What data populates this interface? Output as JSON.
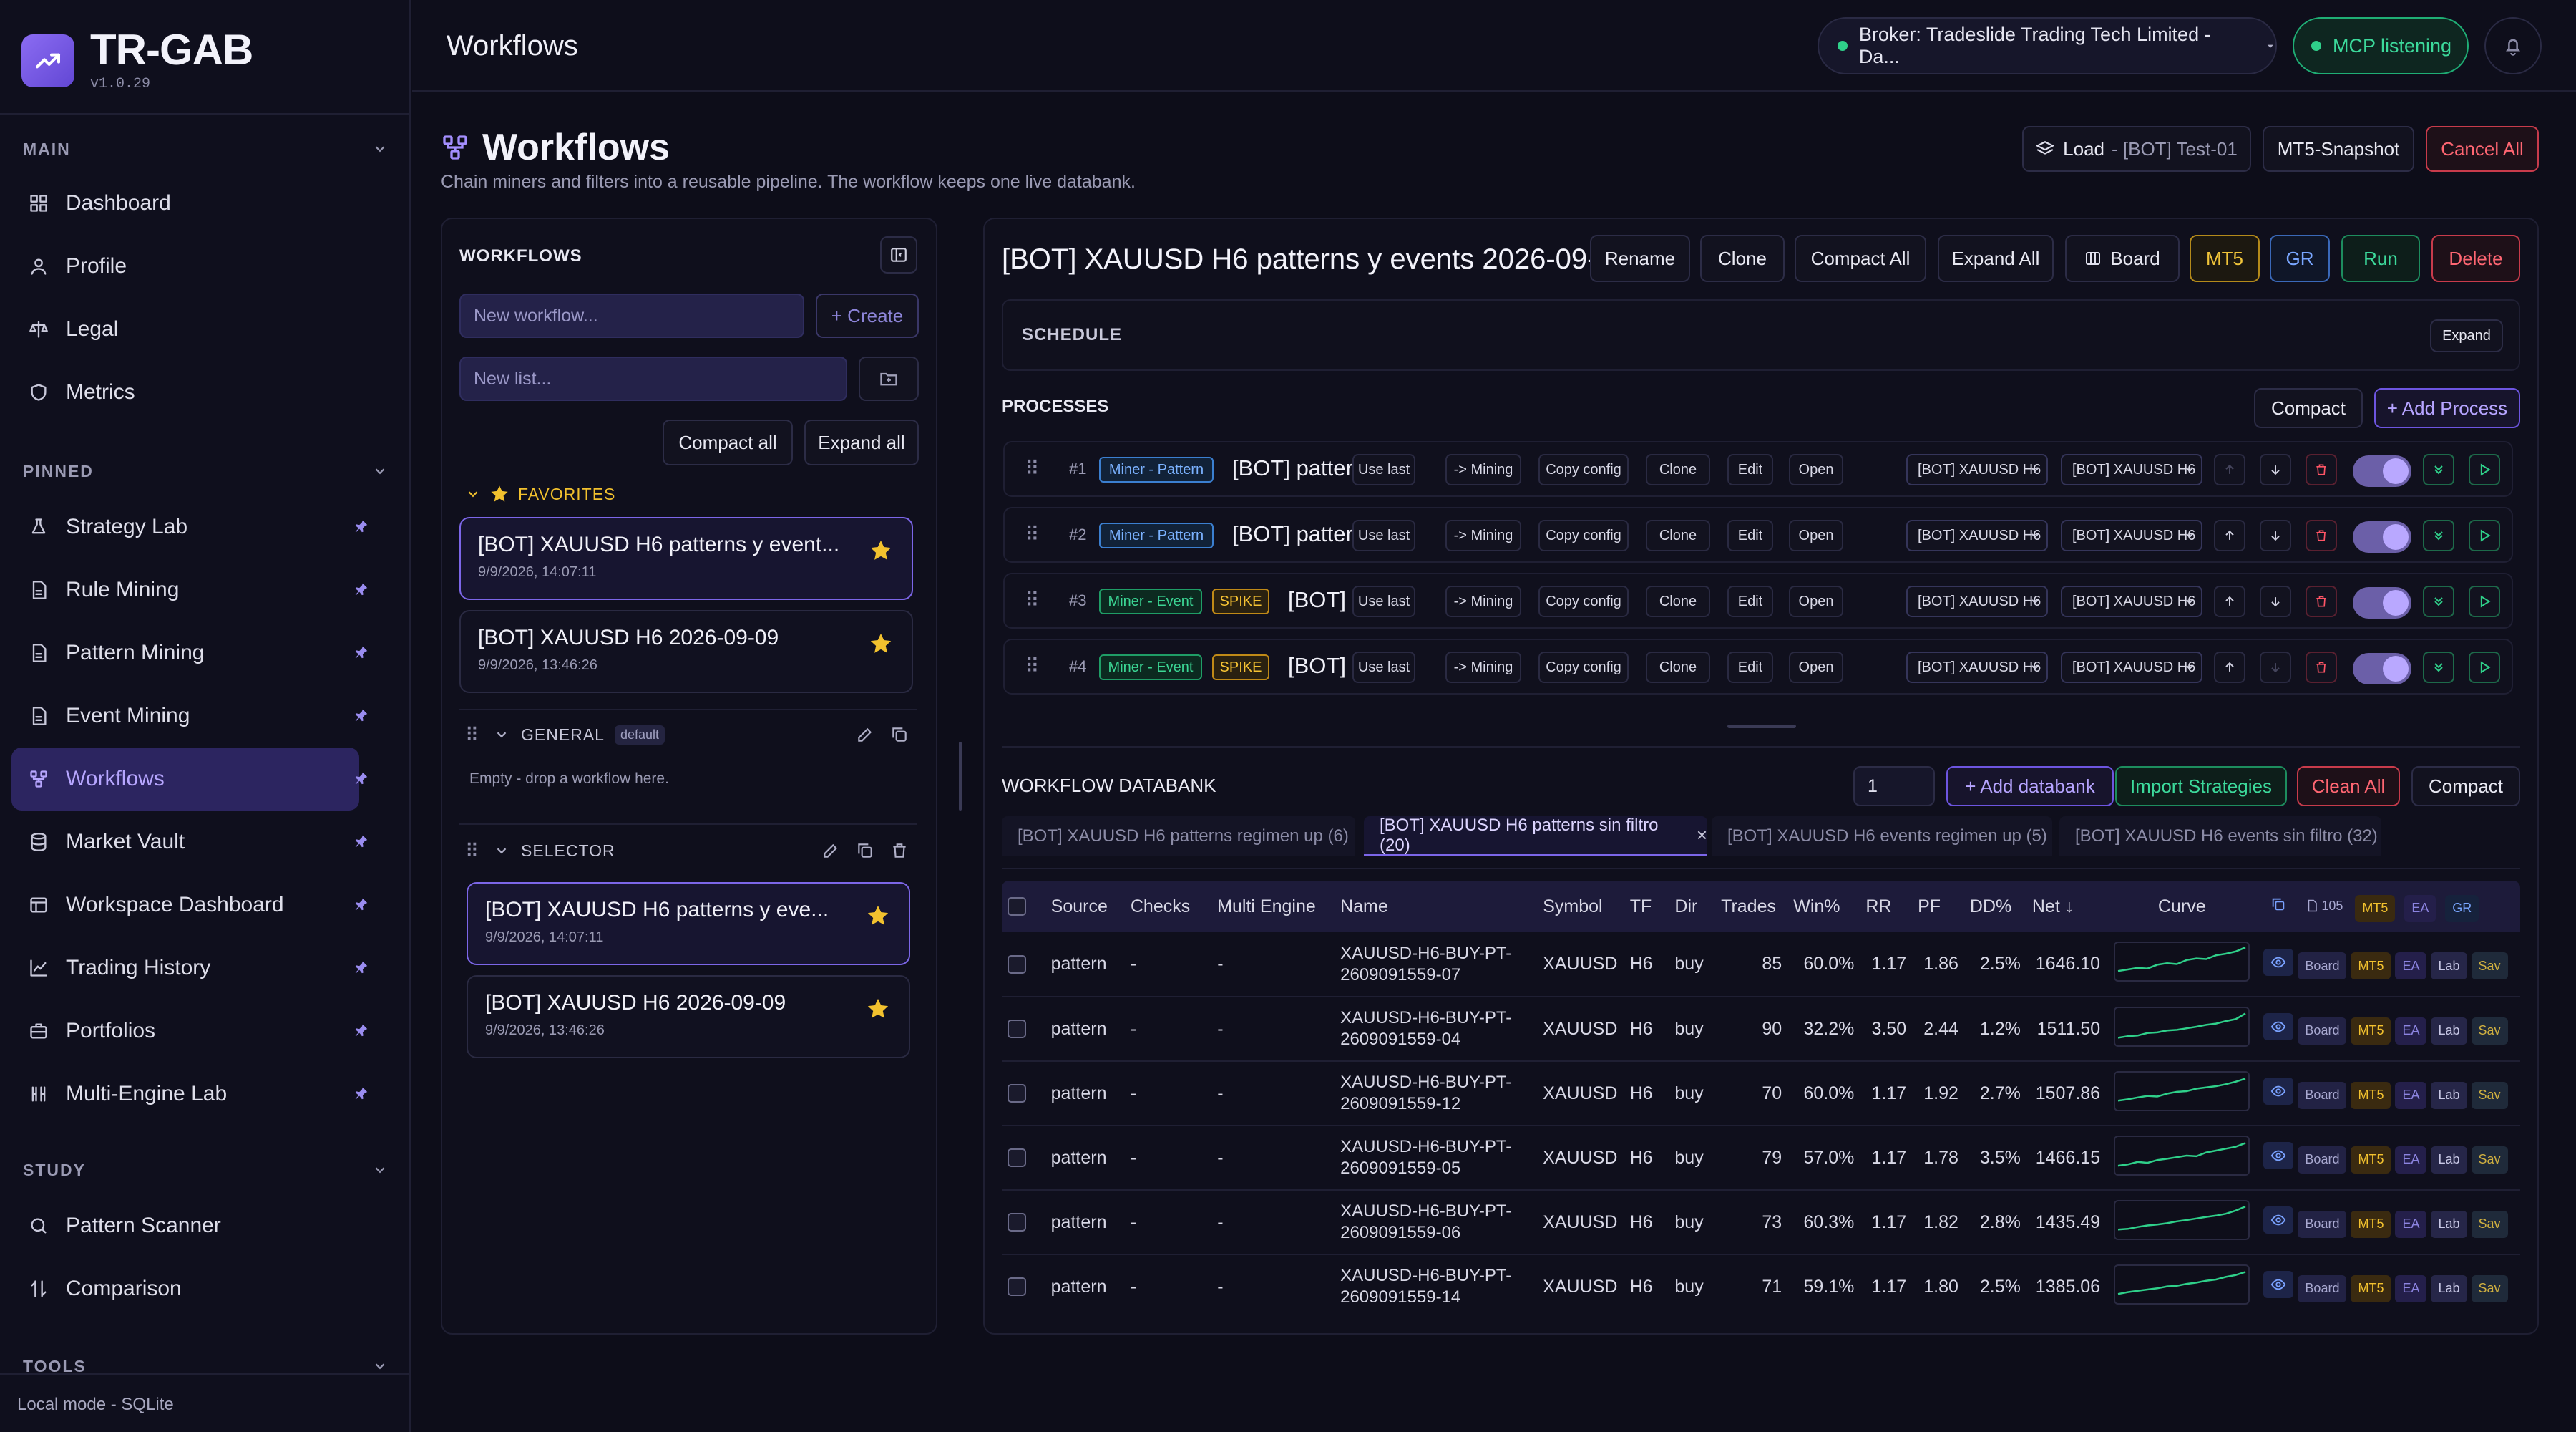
{
  "app": {
    "name": "TR-GAB",
    "version": "v1.0.29"
  },
  "sidebar": {
    "main_label": "MAIN",
    "main_items": [
      {
        "label": "Dashboard",
        "icon": "grid-icon"
      },
      {
        "label": "Profile",
        "icon": "user-icon"
      },
      {
        "label": "Legal",
        "icon": "scale-icon"
      },
      {
        "label": "Metrics",
        "icon": "shield-icon"
      }
    ],
    "pinned_label": "PINNED",
    "pinned_items": [
      {
        "label": "Strategy Lab",
        "icon": "flask-icon"
      },
      {
        "label": "Rule Mining",
        "icon": "file-icon"
      },
      {
        "label": "Pattern Mining",
        "icon": "file-icon"
      },
      {
        "label": "Event Mining",
        "icon": "file-icon"
      },
      {
        "label": "Workflows",
        "icon": "workflow-icon",
        "active": true
      },
      {
        "label": "Market Vault",
        "icon": "database-icon"
      },
      {
        "label": "Workspace Dashboard",
        "icon": "layout-icon"
      },
      {
        "label": "Trading History",
        "icon": "chart-line-icon"
      },
      {
        "label": "Portfolios",
        "icon": "briefcase-icon"
      },
      {
        "label": "Multi-Engine Lab",
        "icon": "columns-icon"
      }
    ],
    "study_label": "STUDY",
    "study_items": [
      {
        "label": "Pattern Scanner",
        "icon": "search-icon"
      },
      {
        "label": "Comparison",
        "icon": "compare-icon"
      }
    ],
    "tools_label": "TOOLS",
    "footer": "Local mode - SQLite"
  },
  "topbar": {
    "title": "Workflows",
    "broker": "Broker: Tradeslide Trading Tech Limited - Da...",
    "mcp": "MCP listening"
  },
  "page": {
    "title": "Workflows",
    "subtitle": "Chain miners and filters into a reusable pipeline. The workflow keeps one live databank.",
    "load_label": "Load",
    "load_value": "- [BOT] Test-01",
    "snapshot": "MT5-Snapshot",
    "cancel_all": "Cancel All"
  },
  "left_panel": {
    "title": "WORKFLOWS",
    "new_workflow_placeholder": "New workflow...",
    "create": "+ Create",
    "new_list_placeholder": "New list...",
    "compact_all": "Compact all",
    "expand_all": "Expand all",
    "favorites_label": "FAVORITES",
    "favorites": [
      {
        "title": "[BOT] XAUUSD H6 patterns y event...",
        "date": "9/9/2026, 14:07:11"
      },
      {
        "title": "[BOT] XAUUSD H6 2026-09-09",
        "date": "9/9/2026, 13:46:26"
      }
    ],
    "general_label": "GENERAL",
    "general_tag": "default",
    "general_empty": "Empty - drop a workflow here.",
    "selector_label": "SELECTOR",
    "selector": [
      {
        "title": "[BOT] XAUUSD H6 patterns y eve...",
        "date": "9/9/2026, 14:07:11"
      },
      {
        "title": "[BOT] XAUUSD H6 2026-09-09",
        "date": "9/9/2026, 13:46:26"
      }
    ]
  },
  "workflow": {
    "title": "[BOT] XAUUSD H6 patterns y events 2026-09-...",
    "buttons": {
      "rename": "Rename",
      "clone": "Clone",
      "compact_all": "Compact All",
      "expand_all": "Expand All",
      "board": "Board",
      "mt5": "MT5",
      "gr": "GR",
      "run": "Run",
      "delete": "Delete"
    },
    "schedule_label": "SCHEDULE",
    "schedule_expand": "Expand",
    "processes_label": "PROCESSES",
    "compact": "Compact",
    "add_process": "+ Add Process",
    "action_labels": {
      "use_last": "Use last",
      "mining": "-> Mining",
      "copy_config": "Copy config",
      "clone": "Clone",
      "edit": "Edit",
      "open": "Open"
    },
    "processes": [
      {
        "num": "#1",
        "type": "Miner - Pattern",
        "kind": "pat",
        "spike": "",
        "name": "[BOT] pattern...",
        "sel1": "[BOT] XAUUSD H6",
        "sel2": "[BOT] XAUUSD H6"
      },
      {
        "num": "#2",
        "type": "Miner - Pattern",
        "kind": "pat",
        "spike": "",
        "name": "[BOT] pattern...",
        "sel1": "[BOT] XAUUSD H6",
        "sel2": "[BOT] XAUUSD H6"
      },
      {
        "num": "#3",
        "type": "Miner - Event",
        "kind": "evt",
        "spike": "SPIKE",
        "name": "[BOT] e...",
        "sel1": "[BOT] XAUUSD H6",
        "sel2": "[BOT] XAUUSD H6"
      },
      {
        "num": "#4",
        "type": "Miner - Event",
        "kind": "evt",
        "spike": "SPIKE",
        "name": "[BOT] e...",
        "sel1": "[BOT] XAUUSD H6",
        "sel2": "[BOT] XAUUSD H6"
      }
    ]
  },
  "databank": {
    "label": "WORKFLOW DATABANK",
    "count_value": "1",
    "add": "+ Add databank",
    "import": "Import Strategies",
    "clean": "Clean All",
    "compact": "Compact",
    "tabs": [
      {
        "label": "[BOT] XAUUSD H6 patterns regimen up (6)"
      },
      {
        "label": "[BOT] XAUUSD H6 patterns sin filtro (20)",
        "active": true
      },
      {
        "label": "[BOT] XAUUSD H6 events regimen up (5)"
      },
      {
        "label": "[BOT] XAUUSD H6 events sin filtro (32)"
      }
    ],
    "columns": [
      "Source",
      "Checks",
      "Multi Engine",
      "Name",
      "Symbol",
      "TF",
      "Dir",
      "Trades",
      "Win%",
      "RR",
      "PF",
      "DD%",
      "Net ↓",
      "Curve"
    ],
    "header_badges": {
      "count": "105",
      "mt5": "MT5",
      "ea": "EA",
      "gr": "GR"
    },
    "row_actions": {
      "board": "Board",
      "mt5": "MT5",
      "ea": "EA",
      "lab": "Lab",
      "sav": "Sav"
    },
    "rows": [
      {
        "source": "pattern",
        "checks": "-",
        "multi": "-",
        "name1": "XAUUSD-H6-BUY-PT-",
        "name2": "2609091559-07",
        "symbol": "XAUUSD",
        "tf": "H6",
        "dir": "buy",
        "trades": "85",
        "win": "60.0%",
        "rr": "1.17",
        "pf": "1.86",
        "dd": "2.5%",
        "net": "1646.10",
        "curve": [
          0.2,
          0.25,
          0.3,
          0.28,
          0.4,
          0.45,
          0.42,
          0.55,
          0.6,
          0.58,
          0.7,
          0.75,
          0.82,
          0.95
        ]
      },
      {
        "source": "pattern",
        "checks": "-",
        "multi": "-",
        "name1": "XAUUSD-H6-BUY-PT-",
        "name2": "2609091559-04",
        "symbol": "XAUUSD",
        "tf": "H6",
        "dir": "buy",
        "trades": "90",
        "win": "32.2%",
        "rr": "3.50",
        "pf": "2.44",
        "dd": "1.2%",
        "net": "1511.50",
        "curve": [
          0.15,
          0.2,
          0.22,
          0.3,
          0.32,
          0.38,
          0.4,
          0.45,
          0.5,
          0.56,
          0.6,
          0.68,
          0.74,
          0.92
        ]
      },
      {
        "source": "pattern",
        "checks": "-",
        "multi": "-",
        "name1": "XAUUSD-H6-BUY-PT-",
        "name2": "2609091559-12",
        "symbol": "XAUUSD",
        "tf": "H6",
        "dir": "buy",
        "trades": "70",
        "win": "60.0%",
        "rr": "1.17",
        "pf": "1.92",
        "dd": "2.7%",
        "net": "1507.86",
        "curve": [
          0.2,
          0.24,
          0.3,
          0.35,
          0.33,
          0.42,
          0.48,
          0.5,
          0.58,
          0.62,
          0.66,
          0.72,
          0.8,
          0.9
        ]
      },
      {
        "source": "pattern",
        "checks": "-",
        "multi": "-",
        "name1": "XAUUSD-H6-BUY-PT-",
        "name2": "2609091559-05",
        "symbol": "XAUUSD",
        "tf": "H6",
        "dir": "buy",
        "trades": "79",
        "win": "57.0%",
        "rr": "1.17",
        "pf": "1.78",
        "dd": "3.5%",
        "net": "1466.15",
        "curve": [
          0.18,
          0.22,
          0.3,
          0.27,
          0.36,
          0.4,
          0.45,
          0.5,
          0.48,
          0.6,
          0.66,
          0.72,
          0.78,
          0.9
        ]
      },
      {
        "source": "pattern",
        "checks": "-",
        "multi": "-",
        "name1": "XAUUSD-H6-BUY-PT-",
        "name2": "2609091559-06",
        "symbol": "XAUUSD",
        "tf": "H6",
        "dir": "buy",
        "trades": "73",
        "win": "60.3%",
        "rr": "1.17",
        "pf": "1.82",
        "dd": "2.8%",
        "net": "1435.49",
        "curve": [
          0.2,
          0.22,
          0.28,
          0.33,
          0.36,
          0.4,
          0.46,
          0.5,
          0.55,
          0.6,
          0.64,
          0.7,
          0.8,
          0.93
        ]
      },
      {
        "source": "pattern",
        "checks": "-",
        "multi": "-",
        "name1": "XAUUSD-H6-BUY-PT-",
        "name2": "2609091559-14",
        "symbol": "XAUUSD",
        "tf": "H6",
        "dir": "buy",
        "trades": "71",
        "win": "59.1%",
        "rr": "1.17",
        "pf": "1.80",
        "dd": "2.5%",
        "net": "1385.06",
        "curve": [
          0.2,
          0.26,
          0.3,
          0.34,
          0.38,
          0.44,
          0.46,
          0.52,
          0.56,
          0.62,
          0.66,
          0.74,
          0.8,
          0.9
        ]
      }
    ]
  },
  "colors": {
    "accent": "#7c66e8",
    "green": "#2fd08a",
    "gold": "#f0c43a",
    "red": "#ff6672",
    "blue": "#79a6ff"
  }
}
